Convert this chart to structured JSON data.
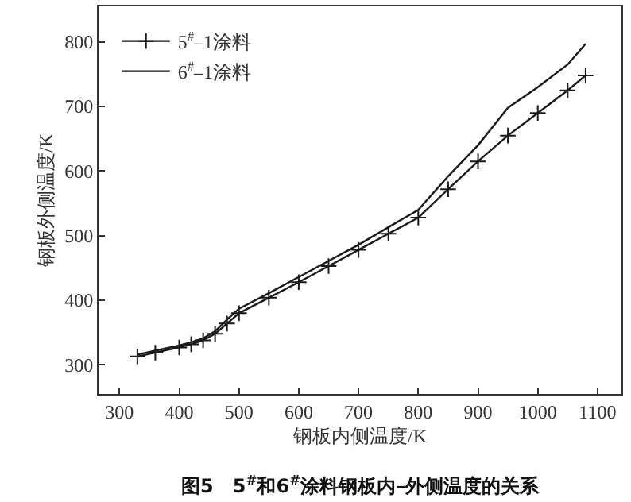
{
  "chart_data": {
    "type": "line",
    "title": "图5　5$^{#}$和6$^{#}$涂料钢板内–外侧温度的关系",
    "xlabel": "钢板内侧温度/K",
    "ylabel": "钢板外侧温度/K",
    "xlim": [
      265,
      1140
    ],
    "ylim": [
      255,
      855
    ],
    "xticks": [
      300,
      400,
      500,
      600,
      700,
      800,
      900,
      1000,
      1100
    ],
    "yticks": [
      300,
      400,
      500,
      600,
      700,
      800
    ],
    "grid": false,
    "legend": "top left",
    "line_style": "solid",
    "series": [
      {
        "name": "5$^{#}$–1涂料",
        "color": "#1a1a1a",
        "marker": "cross",
        "x": [
          330,
          360,
          400,
          420,
          440,
          460,
          480,
          500,
          550,
          600,
          650,
          700,
          750,
          800,
          850,
          900,
          950,
          1000,
          1050,
          1080
        ],
        "values": [
          313,
          319,
          327,
          332,
          338,
          348,
          364,
          380,
          404,
          428,
          453,
          478,
          503,
          528,
          572,
          615,
          655,
          690,
          725,
          748
        ]
      },
      {
        "name": "6$^{#}$–1涂料",
        "color": "#1a1a1a",
        "marker": "none",
        "x": [
          330,
          360,
          400,
          420,
          440,
          460,
          480,
          500,
          550,
          600,
          650,
          700,
          750,
          800,
          850,
          900,
          950,
          1000,
          1050,
          1080
        ],
        "values": [
          316,
          322,
          330,
          335,
          341,
          352,
          370,
          387,
          411,
          436,
          461,
          486,
          513,
          540,
          592,
          640,
          698,
          730,
          765,
          797
        ]
      }
    ]
  }
}
